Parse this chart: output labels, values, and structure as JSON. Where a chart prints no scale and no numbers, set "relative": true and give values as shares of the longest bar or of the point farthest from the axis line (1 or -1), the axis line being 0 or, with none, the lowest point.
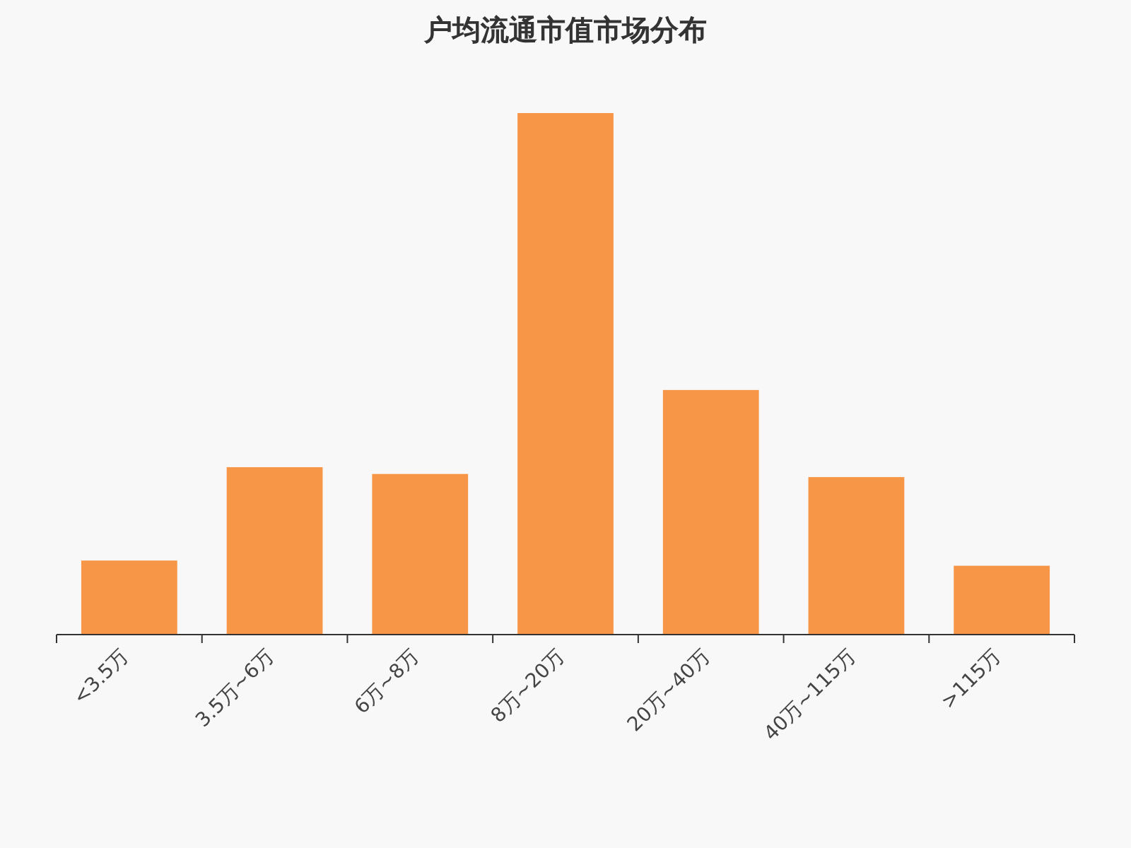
{
  "chart_data": {
    "type": "bar",
    "title": "户均流通市值市场分布",
    "relative": true,
    "color": "#f79646",
    "categories": [
      "<3.5万",
      "3.5万~6万",
      "6万~8万",
      "8万~20万",
      "20万~40万",
      "40万~115万",
      ">115万"
    ],
    "values": [
      0.142,
      0.321,
      0.308,
      1,
      0.469,
      0.302,
      0.132
    ]
  }
}
